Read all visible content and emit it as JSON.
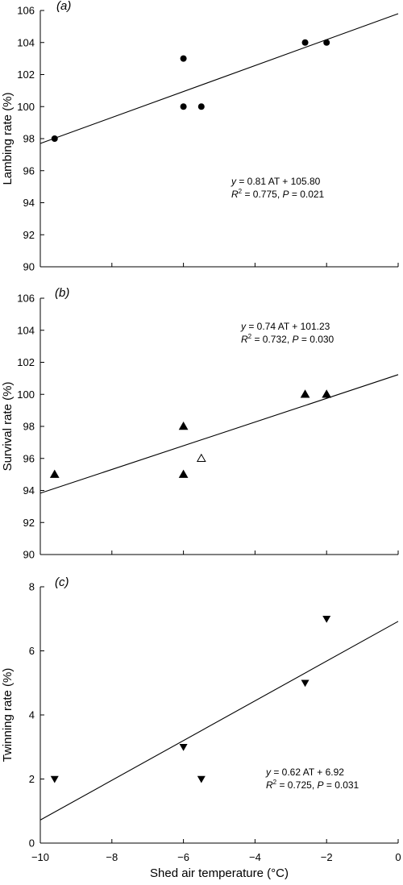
{
  "chart_data": [
    {
      "type": "scatter",
      "panel_label": "(a)",
      "ylabel": "Lambing rate (%)",
      "ylim": [
        90,
        106
      ],
      "yticks": [
        90,
        92,
        94,
        96,
        98,
        100,
        102,
        104,
        106
      ],
      "xlim": [
        -10,
        0
      ],
      "marker": "circle-filled",
      "points": [
        {
          "x": -9.6,
          "y": 98
        },
        {
          "x": -6.0,
          "y": 103
        },
        {
          "x": -6.0,
          "y": 100
        },
        {
          "x": -5.5,
          "y": 100
        },
        {
          "x": -2.6,
          "y": 104
        },
        {
          "x": -2.0,
          "y": 104
        }
      ],
      "fit": {
        "slope": 0.81,
        "intercept": 105.8
      },
      "equation": {
        "y_var": "y",
        "body": " = 0.81 AT + 105.80",
        "r2_var": "R",
        "r2_sup": "2",
        "r2_rest": " = 0.775, ",
        "p_var": "P",
        "p_rest": " = 0.021"
      }
    },
    {
      "type": "scatter",
      "panel_label": "(b)",
      "ylabel": "Survival rate (%)",
      "ylim": [
        90,
        106
      ],
      "yticks": [
        90,
        92,
        94,
        96,
        98,
        100,
        102,
        104,
        106
      ],
      "xlim": [
        -10,
        0
      ],
      "marker": "triangle-up",
      "points": [
        {
          "x": -9.6,
          "y": 95,
          "filled": true
        },
        {
          "x": -6.0,
          "y": 98,
          "filled": true
        },
        {
          "x": -6.0,
          "y": 95,
          "filled": true
        },
        {
          "x": -5.5,
          "y": 96,
          "filled": false
        },
        {
          "x": -2.6,
          "y": 100,
          "filled": true
        },
        {
          "x": -2.0,
          "y": 100,
          "filled": true
        }
      ],
      "fit": {
        "slope": 0.74,
        "intercept": 101.23
      },
      "equation": {
        "y_var": "y",
        "body": " = 0.74 AT + 101.23",
        "r2_var": "R",
        "r2_sup": "2",
        "r2_rest": " = 0.732, ",
        "p_var": "P",
        "p_rest": " = 0.030"
      }
    },
    {
      "type": "scatter",
      "panel_label": "(c)",
      "ylabel": "Twinning rate (%)",
      "ylim": [
        0,
        8
      ],
      "yticks": [
        0,
        2,
        4,
        6,
        8
      ],
      "xlim": [
        -10,
        0
      ],
      "xticks": [
        -10,
        -8,
        -6,
        -4,
        -2,
        0
      ],
      "xticklabels": [
        "−10",
        "−8",
        "−6",
        "−4",
        "−2",
        "0"
      ],
      "xlabel": "Shed air temperature (°C)",
      "marker": "triangle-down",
      "points": [
        {
          "x": -9.6,
          "y": 2
        },
        {
          "x": -6.0,
          "y": 3
        },
        {
          "x": -5.5,
          "y": 2
        },
        {
          "x": -2.6,
          "y": 5
        },
        {
          "x": -2.0,
          "y": 7
        }
      ],
      "fit": {
        "slope": 0.62,
        "intercept": 6.92
      },
      "equation": {
        "y_var": "y",
        "body": " = 0.62 AT + 6.92",
        "r2_var": "R",
        "r2_sup": "2",
        "r2_rest": " = 0.725, ",
        "p_var": "P",
        "p_rest": " = 0.031"
      }
    }
  ]
}
